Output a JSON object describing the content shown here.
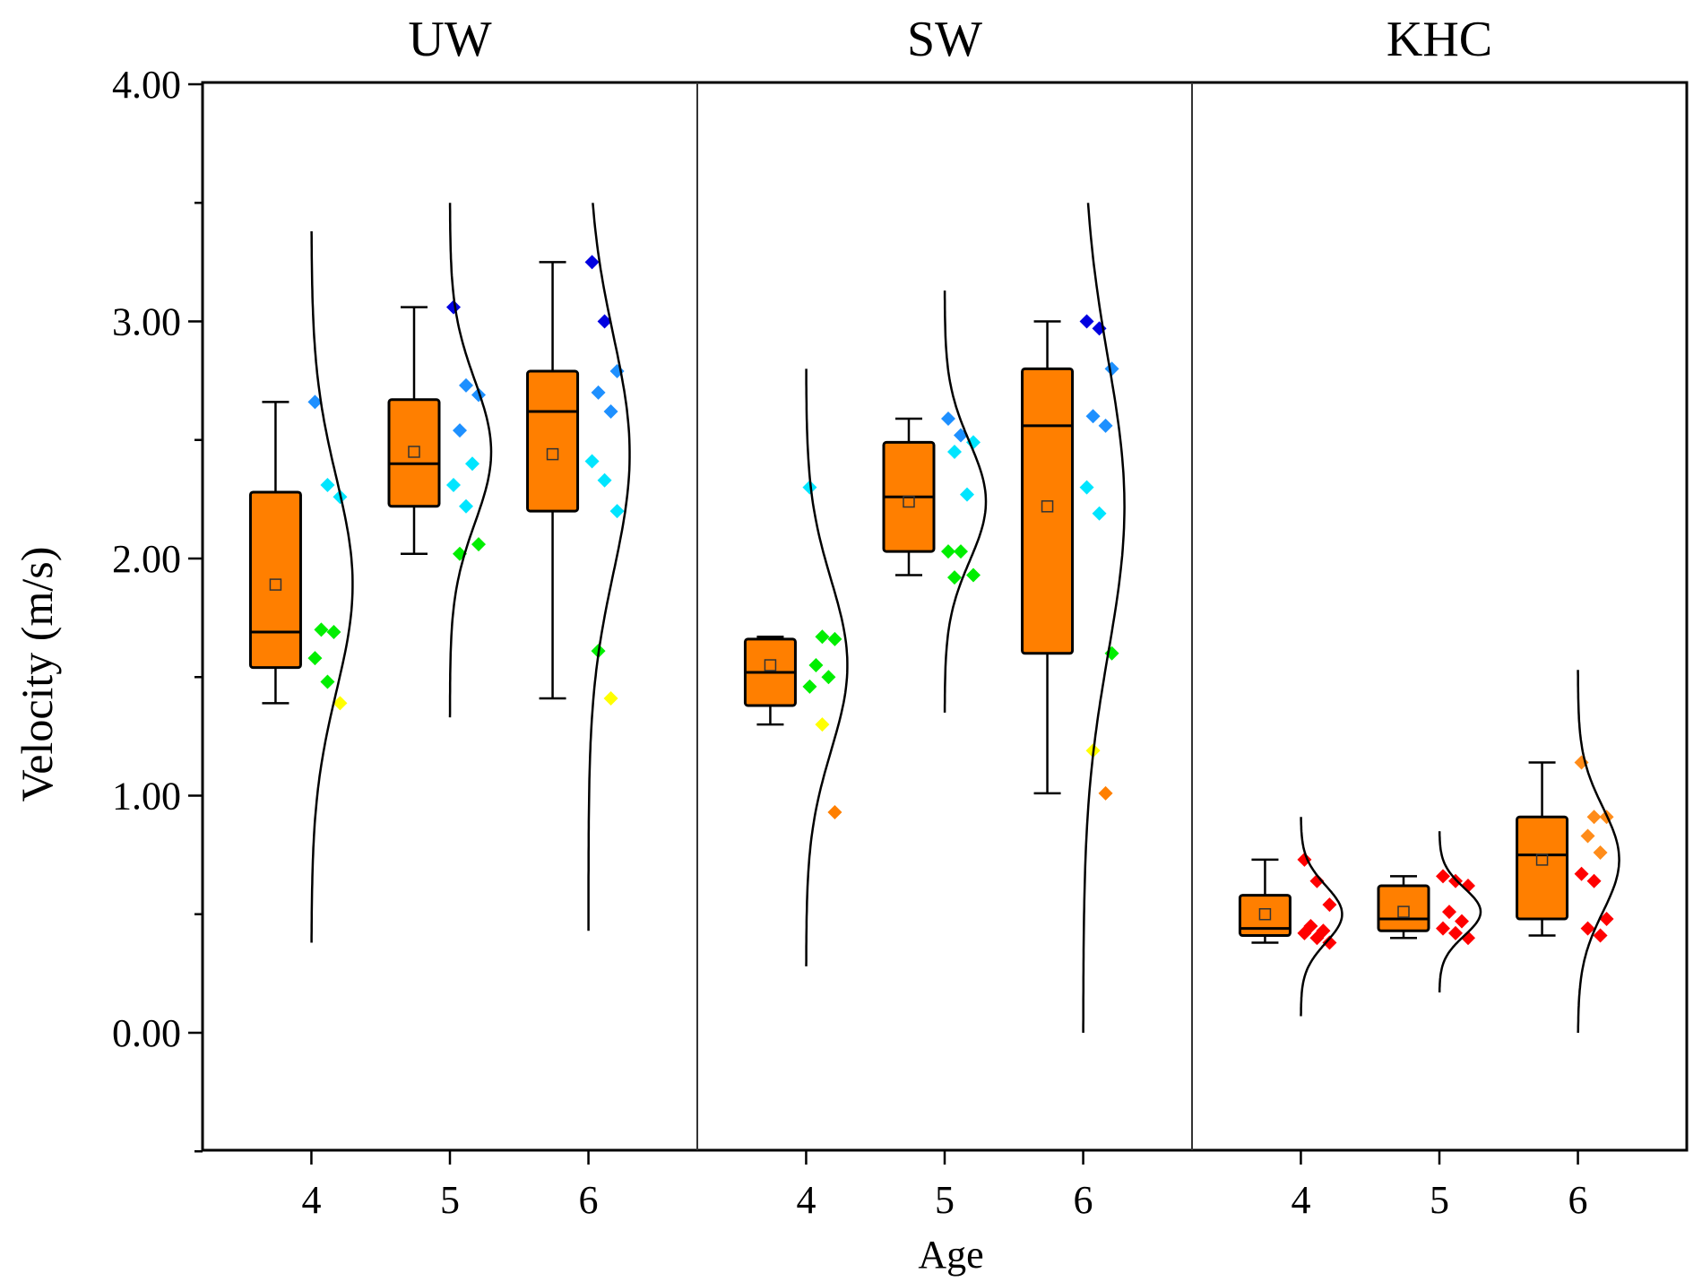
{
  "chart_data": {
    "type": "box",
    "ylabel": "Velocity (m/s)",
    "xlabel": "Age",
    "ylim": [
      -0.5,
      4.0
    ],
    "yticks": [
      0.0,
      1.0,
      2.0,
      3.0,
      4.0
    ],
    "ytick_labels": [
      "0.00",
      "1.00",
      "2.00",
      "3.00",
      "4.00"
    ],
    "categories": [
      "4",
      "5",
      "6"
    ],
    "panels": [
      {
        "title": "UW",
        "groups": [
          {
            "age": "4",
            "whisker_low": 1.39,
            "q1": 1.54,
            "median": 1.69,
            "q3": 2.28,
            "whisker_high": 2.66,
            "mean": 1.89,
            "points": [
              2.66,
              2.31,
              2.26,
              1.7,
              1.69,
              1.58,
              1.48,
              1.39
            ],
            "curve_range": [
              0.38,
              3.38
            ],
            "curve_mean": 1.89,
            "curve_sd": 0.45
          },
          {
            "age": "5",
            "whisker_low": 2.02,
            "q1": 2.22,
            "median": 2.4,
            "q3": 2.67,
            "whisker_high": 3.06,
            "mean": 2.45,
            "points": [
              3.06,
              2.73,
              2.69,
              2.54,
              2.4,
              2.31,
              2.22,
              2.06,
              2.02
            ],
            "curve_range": [
              1.33,
              3.5
            ],
            "curve_mean": 2.45,
            "curve_sd": 0.3
          },
          {
            "age": "6",
            "whisker_low": 1.41,
            "q1": 2.2,
            "median": 2.62,
            "q3": 2.79,
            "whisker_high": 3.25,
            "mean": 2.44,
            "points": [
              3.25,
              3.0,
              2.79,
              2.7,
              2.62,
              2.41,
              2.33,
              2.2,
              1.61,
              1.41
            ],
            "curve_range": [
              0.43,
              3.5
            ],
            "curve_mean": 2.44,
            "curve_sd": 0.5
          }
        ]
      },
      {
        "title": "SW",
        "groups": [
          {
            "age": "4",
            "whisker_low": 1.3,
            "q1": 1.38,
            "median": 1.52,
            "q3": 1.66,
            "whisker_high": 1.67,
            "mean": 1.55,
            "points": [
              2.3,
              1.67,
              1.66,
              1.55,
              1.5,
              1.46,
              1.3,
              0.93
            ],
            "curve_range": [
              0.28,
              2.8
            ],
            "curve_mean": 1.55,
            "curve_sd": 0.36
          },
          {
            "age": "5",
            "whisker_low": 1.93,
            "q1": 2.03,
            "median": 2.26,
            "q3": 2.49,
            "whisker_high": 2.59,
            "mean": 2.24,
            "points": [
              2.59,
              2.52,
              2.49,
              2.45,
              2.27,
              2.03,
              2.03,
              1.93,
              1.92
            ],
            "curve_range": [
              1.35,
              3.13
            ],
            "curve_mean": 2.24,
            "curve_sd": 0.25
          },
          {
            "age": "6",
            "whisker_low": 1.01,
            "q1": 1.6,
            "median": 2.56,
            "q3": 2.8,
            "whisker_high": 3.0,
            "mean": 2.22,
            "points": [
              3.0,
              2.97,
              2.8,
              2.6,
              2.56,
              2.3,
              2.19,
              1.6,
              1.19,
              1.01
            ],
            "curve_range": [
              0.0,
              3.5
            ],
            "curve_mean": 2.22,
            "curve_sd": 0.62
          }
        ]
      },
      {
        "title": "KHC",
        "groups": [
          {
            "age": "4",
            "whisker_low": 0.38,
            "q1": 0.41,
            "median": 0.44,
            "q3": 0.58,
            "whisker_high": 0.73,
            "mean": 0.5,
            "points": [
              0.73,
              0.64,
              0.54,
              0.45,
              0.43,
              0.42,
              0.4,
              0.38
            ],
            "curve_range": [
              0.07,
              0.91
            ],
            "curve_mean": 0.5,
            "curve_sd": 0.12
          },
          {
            "age": "5",
            "whisker_low": 0.4,
            "q1": 0.43,
            "median": 0.48,
            "q3": 0.62,
            "whisker_high": 0.66,
            "mean": 0.51,
            "points": [
              0.66,
              0.64,
              0.62,
              0.51,
              0.47,
              0.44,
              0.42,
              0.4
            ],
            "curve_range": [
              0.17,
              0.85
            ],
            "curve_mean": 0.51,
            "curve_sd": 0.1
          },
          {
            "age": "6",
            "whisker_low": 0.41,
            "q1": 0.48,
            "median": 0.75,
            "q3": 0.91,
            "whisker_high": 1.14,
            "mean": 0.73,
            "points": [
              1.14,
              0.91,
              0.91,
              0.83,
              0.76,
              0.67,
              0.64,
              0.48,
              0.44,
              0.41
            ],
            "curve_range": [
              0.0,
              1.53
            ],
            "curve_mean": 0.73,
            "curve_sd": 0.22
          }
        ]
      }
    ]
  },
  "colors": {
    "box_fill": "#ff7f00",
    "line": "#000000",
    "khc_points": "#ff0000",
    "khc6_points": "#ff8c1a"
  },
  "point_color_scale": [
    {
      "max": 1.1,
      "color": "#ff7f00"
    },
    {
      "max": 1.45,
      "color": "#ffff00"
    },
    {
      "max": 2.1,
      "color": "#00ee00"
    },
    {
      "max": 2.5,
      "color": "#00e5ff"
    },
    {
      "max": 2.9,
      "color": "#1e90ff"
    },
    {
      "max": 9.99,
      "color": "#0000e0"
    }
  ]
}
